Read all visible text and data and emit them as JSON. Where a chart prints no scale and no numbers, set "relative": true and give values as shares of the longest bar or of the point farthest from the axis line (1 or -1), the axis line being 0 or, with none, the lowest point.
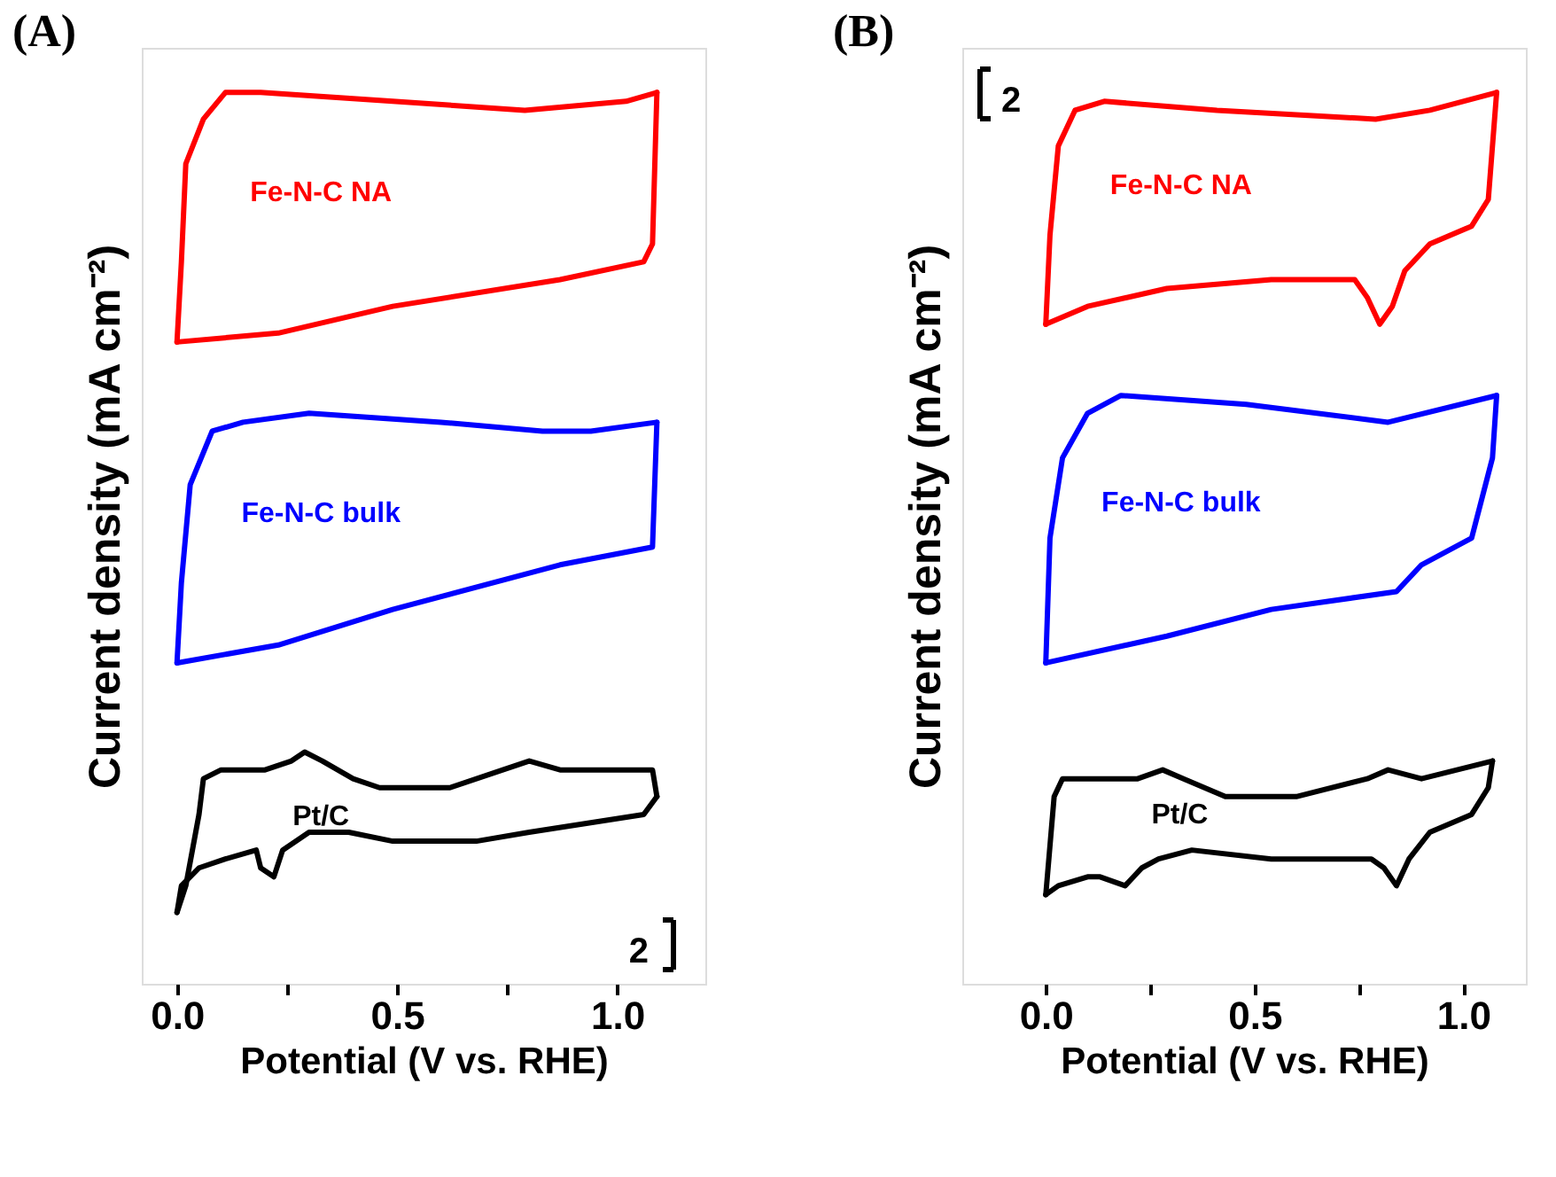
{
  "chart_data": [
    {
      "type": "line",
      "title": "(A)",
      "xlabel": "Potential (V vs. RHE)",
      "ylabel": "Current density (mA cm⁻²)",
      "relative": true,
      "xlim": [
        -0.08,
        1.2
      ],
      "xticks": [
        {
          "value": 0,
          "label": "0.0"
        },
        {
          "value": 0.25,
          "label": null
        },
        {
          "value": 0.5,
          "label": "0.5"
        },
        {
          "value": 0.75,
          "label": null
        },
        {
          "value": 1.0,
          "label": "1.0"
        }
      ],
      "tick_labels": "x",
      "grid": false,
      "legend": false,
      "marker": "none",
      "line_style": "solid",
      "annotations": [
        "2"
      ],
      "series": [
        {
          "name": "Fe-N-C NA",
          "color": "#ff0000",
          "x": [
            0.0,
            0.01,
            0.02,
            0.06,
            0.11,
            0.19,
            0.49,
            0.79,
            1.02,
            1.09
          ],
          "values": [
            0.72,
            0.81,
            0.92,
            0.97,
            1.0,
            1.0,
            0.99,
            0.98,
            0.99,
            1.0
          ]
        },
        {
          "color": "#ff0000",
          "x": [
            1.09,
            1.08,
            1.06,
            0.87,
            0.49,
            0.23,
            0.0
          ],
          "values": [
            1.0,
            0.83,
            0.81,
            0.79,
            0.76,
            0.73,
            0.72
          ]
        },
        {
          "name": "Fe-N-C bulk",
          "color": "#0000ff",
          "x": [
            0.0,
            0.01,
            0.03,
            0.08,
            0.15,
            0.3,
            0.6,
            0.83,
            0.94,
            1.09
          ],
          "values": [
            0.36,
            0.45,
            0.56,
            0.62,
            0.63,
            0.64,
            0.63,
            0.62,
            0.62,
            0.63
          ]
        },
        {
          "color": "#0000ff",
          "x": [
            1.09,
            1.08,
            0.87,
            0.49,
            0.23,
            0.0
          ],
          "values": [
            0.63,
            0.49,
            0.47,
            0.42,
            0.38,
            0.36
          ]
        },
        {
          "name": "Pt/C",
          "color": "#000000",
          "x": [
            0.0,
            0.02,
            0.05,
            0.06,
            0.1,
            0.2,
            0.26,
            0.29,
            0.33,
            0.4,
            0.46,
            0.62,
            0.74,
            0.8,
            0.87,
            0.97,
            1.08,
            1.09
          ],
          "values": [
            0.08,
            0.11,
            0.19,
            0.23,
            0.24,
            0.24,
            0.25,
            0.26,
            0.25,
            0.23,
            0.22,
            0.22,
            0.24,
            0.25,
            0.24,
            0.24,
            0.24,
            0.21
          ]
        },
        {
          "color": "#000000",
          "x": [
            1.09,
            1.06,
            0.93,
            0.8,
            0.68,
            0.49,
            0.39,
            0.3,
            0.24,
            0.22,
            0.19,
            0.18,
            0.11,
            0.05,
            0.01,
            0.0
          ],
          "values": [
            0.21,
            0.19,
            0.18,
            0.17,
            0.16,
            0.16,
            0.17,
            0.17,
            0.15,
            0.12,
            0.13,
            0.15,
            0.14,
            0.13,
            0.11,
            0.08
          ]
        }
      ]
    },
    {
      "type": "line",
      "title": "(B)",
      "xlabel": "Potential (V vs. RHE)",
      "ylabel": "Current density (mA cm⁻²)",
      "relative": true,
      "xlim": [
        -0.2,
        1.15
      ],
      "xticks": [
        {
          "value": 0,
          "label": "0.0"
        },
        {
          "value": 0.25,
          "label": null
        },
        {
          "value": 0.5,
          "label": "0.5"
        },
        {
          "value": 0.75,
          "label": null
        },
        {
          "value": 1.0,
          "label": "1.0"
        }
      ],
      "tick_labels": "x",
      "grid": false,
      "legend": false,
      "marker": "none",
      "line_style": "solid",
      "annotations": [
        "2"
      ],
      "series": [
        {
          "name": "Fe-N-C NA",
          "color": "#ff0000",
          "x": [
            0.0,
            0.01,
            0.03,
            0.07,
            0.14,
            0.41,
            0.79,
            0.92,
            1.08
          ],
          "values": [
            0.74,
            0.84,
            0.94,
            0.98,
            0.99,
            0.98,
            0.97,
            0.98,
            1.0
          ]
        },
        {
          "color": "#ff0000",
          "x": [
            1.08,
            1.06,
            1.02,
            0.92,
            0.86,
            0.83,
            0.8,
            0.77,
            0.74,
            0.54,
            0.29,
            0.1,
            0.0
          ],
          "values": [
            1.0,
            0.88,
            0.85,
            0.83,
            0.8,
            0.76,
            0.74,
            0.77,
            0.79,
            0.79,
            0.78,
            0.76,
            0.74
          ]
        },
        {
          "name": "Fe-N-C bulk",
          "color": "#0000ff",
          "x": [
            0.0,
            0.01,
            0.04,
            0.1,
            0.18,
            0.48,
            0.82,
            1.08
          ],
          "values": [
            0.36,
            0.5,
            0.59,
            0.64,
            0.66,
            0.65,
            0.63,
            0.66
          ]
        },
        {
          "color": "#0000ff",
          "x": [
            1.08,
            1.07,
            1.02,
            0.9,
            0.84,
            0.54,
            0.29,
            0.0
          ],
          "values": [
            0.66,
            0.59,
            0.5,
            0.47,
            0.44,
            0.42,
            0.39,
            0.36
          ]
        },
        {
          "name": "Pt/C",
          "color": "#000000",
          "x": [
            0.0,
            0.02,
            0.04,
            0.13,
            0.22,
            0.28,
            0.33,
            0.43,
            0.6,
            0.77,
            0.82,
            0.9,
            1.07
          ],
          "values": [
            0.1,
            0.21,
            0.23,
            0.23,
            0.23,
            0.24,
            0.23,
            0.21,
            0.21,
            0.23,
            0.24,
            0.23,
            0.25
          ]
        },
        {
          "color": "#000000",
          "x": [
            1.07,
            1.06,
            1.02,
            0.92,
            0.87,
            0.84,
            0.81,
            0.78,
            0.54,
            0.35,
            0.27,
            0.23,
            0.19,
            0.13,
            0.1,
            0.03,
            0.0
          ],
          "values": [
            0.25,
            0.22,
            0.19,
            0.17,
            0.14,
            0.11,
            0.13,
            0.14,
            0.14,
            0.15,
            0.14,
            0.13,
            0.11,
            0.12,
            0.12,
            0.11,
            0.1
          ]
        }
      ]
    }
  ]
}
